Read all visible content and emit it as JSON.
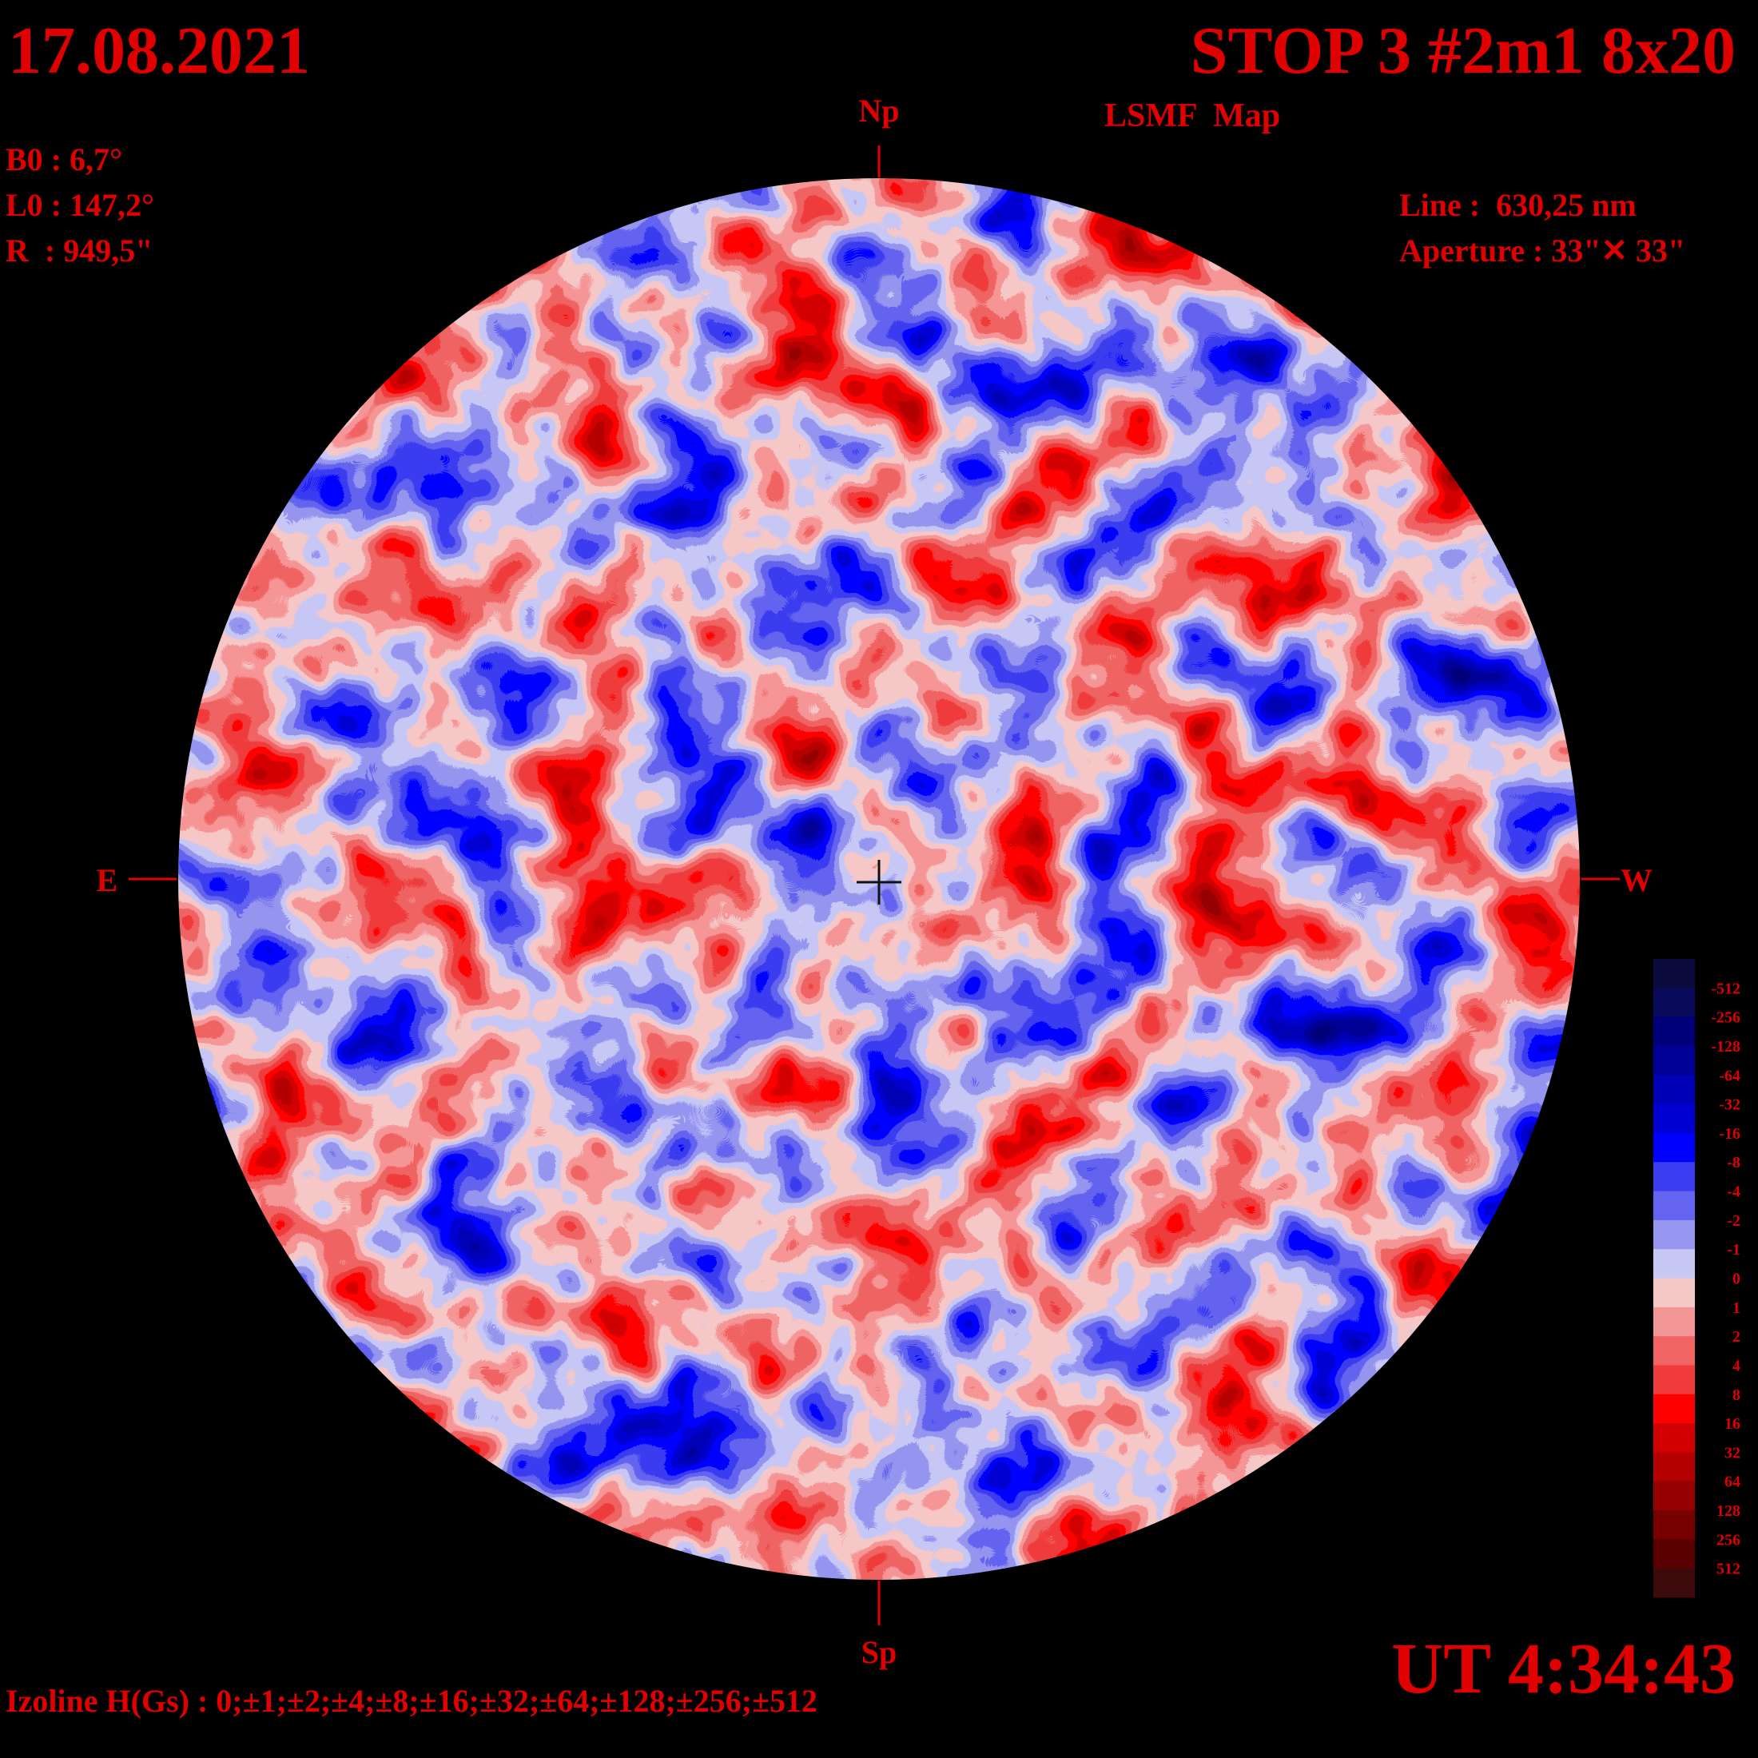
{
  "header": {
    "date": "17.08.2021",
    "title": "STOP 3 #2m1 8x20",
    "subtitle": "LSMF  Map",
    "b0": "B0 : 6,7°",
    "l0": "L0 : 147,2°",
    "r": "R  : 949,5\"",
    "line": "Line :  630,25 nm",
    "aperture": "Aperture : 33\"✕ 33\""
  },
  "directions": {
    "north": "Np",
    "south": "Sp",
    "east": "E",
    "west": "W"
  },
  "time": "UT 4:34:43",
  "izoline": "Izoline H(Gs) : 0;±1;±2;±4;±8;±16;±32;±64;±128;±256;±512",
  "colorbar": {
    "labels": [
      -512,
      -256,
      -128,
      -64,
      -32,
      -16,
      -8,
      -4,
      -2,
      -1,
      0,
      1,
      2,
      4,
      8,
      16,
      32,
      64,
      128,
      256,
      512
    ],
    "colors": [
      "#0a0a3c",
      "#0a0a5a",
      "#00007a",
      "#000096",
      "#0000b4",
      "#0000d2",
      "#0000ff",
      "#3c3cf0",
      "#6464f0",
      "#9696f0",
      "#c8c8f5",
      "#f5c8c8",
      "#f59696",
      "#f06464",
      "#f03c3c",
      "#ff0000",
      "#d20000",
      "#b40000",
      "#960000",
      "#780000",
      "#5a0000",
      "#3c0a0a"
    ]
  }
}
